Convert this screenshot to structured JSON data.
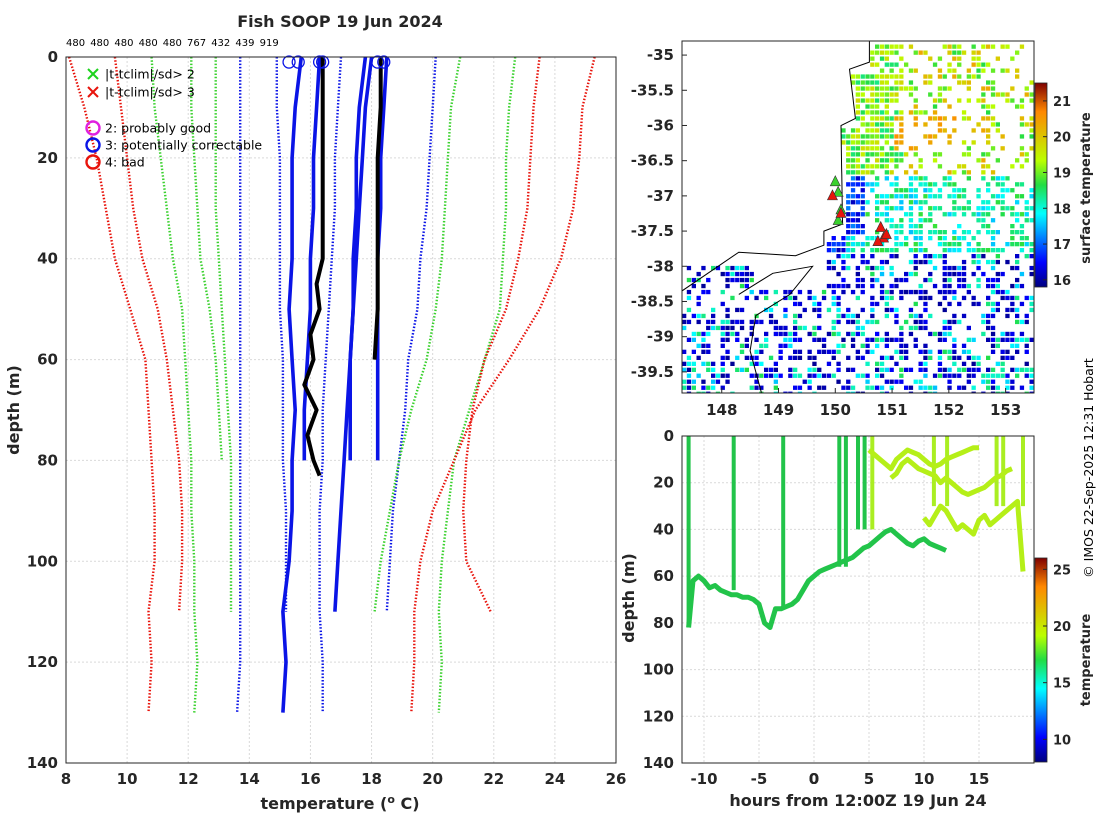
{
  "title": "Fish SOOP 19 Jun 2024",
  "credit": "© IMOS 22-Sep-2025 12:31 Hobart",
  "colors": {
    "red": "#e8140c",
    "green": "#3ad12e",
    "blue": "#0a14e6",
    "black": "#000000"
  },
  "chart_data": [
    {
      "id": "profile",
      "type": "line",
      "title": "Fish SOOP 19 Jun 2024",
      "xlabel": "temperature (o C)",
      "ylabel": "depth (m)",
      "xlim": [
        8,
        26
      ],
      "ylim": [
        140,
        0
      ],
      "xticks": [
        "8",
        "10",
        "12",
        "14",
        "16",
        "18",
        "20",
        "22",
        "24",
        "26"
      ],
      "yticks": [
        "0",
        "20",
        "40",
        "60",
        "80",
        "100",
        "120",
        "140"
      ],
      "top_counts": [
        "480",
        "480",
        "480",
        "480",
        "480",
        "767",
        "432",
        "439",
        "919"
      ],
      "legend": [
        {
          "marker": "x",
          "color": "#1ed31e",
          "label": "|t-tclim|/sd> 2"
        },
        {
          "marker": "x",
          "color": "#e8140c",
          "label": "|t-tclim|/sd> 3"
        },
        {
          "marker": "o",
          "color": "#e020e0",
          "label": "2: probably good"
        },
        {
          "marker": "o",
          "color": "#0a14e6",
          "label": "3: potentially correctable"
        },
        {
          "marker": "o",
          "color": "#e8140c",
          "label": "4: bad"
        }
      ],
      "climatology": [
        {
          "name": "red-lower-outer",
          "color": "red",
          "depth": [
            0,
            10,
            20,
            30,
            40,
            50,
            60,
            70,
            80,
            90,
            100,
            110,
            120,
            130
          ],
          "temp": [
            8.1,
            8.6,
            9.0,
            9.3,
            9.6,
            10.1,
            10.6,
            10.7,
            10.8,
            10.9,
            10.9,
            10.7,
            10.8,
            10.7
          ]
        },
        {
          "name": "red-lower-inner",
          "color": "red",
          "depth": [
            0,
            10,
            20,
            30,
            40,
            50,
            60,
            70,
            80,
            90,
            100,
            110
          ],
          "temp": [
            9.6,
            9.8,
            10.0,
            10.2,
            10.5,
            11.0,
            11.3,
            11.5,
            11.7,
            11.8,
            11.8,
            11.7
          ]
        },
        {
          "name": "green-lower-outer",
          "color": "green",
          "depth": [
            0,
            10,
            20,
            30,
            40,
            50,
            60,
            70,
            80,
            90,
            100,
            110,
            120,
            130
          ],
          "temp": [
            10.8,
            10.9,
            11.1,
            11.3,
            11.5,
            11.8,
            11.9,
            12.0,
            12.1,
            12.1,
            12.2,
            12.2,
            12.3,
            12.2
          ]
        },
        {
          "name": "green-lower-inner",
          "color": "green",
          "depth": [
            0,
            10,
            20,
            30,
            40,
            50,
            60,
            70,
            80
          ],
          "temp": [
            12.1,
            12.1,
            12.2,
            12.3,
            12.4,
            12.7,
            12.9,
            13.0,
            13.1
          ]
        },
        {
          "name": "green-lower-2",
          "color": "green",
          "depth": [
            0,
            10,
            20,
            30,
            40,
            50,
            60,
            70,
            80,
            90,
            100,
            110
          ],
          "temp": [
            12.9,
            12.9,
            12.9,
            12.9,
            13.0,
            13.1,
            13.2,
            13.3,
            13.4,
            13.4,
            13.4,
            13.4
          ]
        },
        {
          "name": "blue-lower-outer",
          "color": "blue",
          "depth": [
            0,
            10,
            20,
            30,
            40,
            50,
            60,
            70,
            80,
            90,
            100,
            110,
            120,
            130
          ],
          "temp": [
            13.7,
            13.7,
            13.7,
            13.7,
            13.7,
            13.7,
            13.7,
            13.7,
            13.7,
            13.7,
            13.7,
            13.7,
            13.7,
            13.6
          ]
        },
        {
          "name": "blue-lower-inner",
          "color": "blue",
          "depth": [
            0,
            10,
            20,
            30,
            40,
            50,
            60,
            70,
            80,
            90,
            100,
            110
          ],
          "temp": [
            14.9,
            14.9,
            15.0,
            15.0,
            15.0,
            15.0,
            15.1,
            15.1,
            15.1,
            15.2,
            15.2,
            15.2
          ]
        },
        {
          "name": "blue-upper-inner",
          "color": "blue",
          "depth": [
            0,
            10,
            20,
            30,
            40,
            50,
            60,
            70,
            80,
            90,
            100,
            110,
            120,
            130
          ],
          "temp": [
            17.0,
            16.9,
            16.8,
            16.8,
            16.7,
            16.6,
            16.5,
            16.4,
            16.4,
            16.3,
            16.3,
            16.3,
            16.4,
            16.4
          ]
        },
        {
          "name": "blue-upper-outer",
          "color": "blue",
          "depth": [
            0,
            10,
            20,
            30,
            40,
            50,
            60,
            70,
            80,
            90,
            100,
            110
          ],
          "temp": [
            20.1,
            20.0,
            19.9,
            19.8,
            19.6,
            19.5,
            19.2,
            19.1,
            18.9,
            18.7,
            18.6,
            18.5
          ]
        },
        {
          "name": "green-upper-inner",
          "color": "green",
          "depth": [
            0,
            10,
            20,
            30,
            40,
            50,
            60,
            70,
            80,
            90,
            100,
            110
          ],
          "temp": [
            20.9,
            20.6,
            20.5,
            20.4,
            20.3,
            20.1,
            19.8,
            19.3,
            18.9,
            18.6,
            18.3,
            18.1
          ]
        },
        {
          "name": "green-upper-outer",
          "color": "green",
          "depth": [
            0,
            10,
            20,
            30,
            40,
            50,
            60,
            70,
            80,
            90,
            100,
            110,
            120,
            130
          ],
          "temp": [
            22.7,
            22.5,
            22.4,
            22.4,
            22.3,
            22.2,
            21.7,
            21.2,
            20.7,
            20.5,
            20.3,
            20.2,
            20.3,
            20.2
          ]
        },
        {
          "name": "red-upper-inner",
          "color": "red",
          "depth": [
            0,
            10,
            20,
            30,
            40,
            50,
            60,
            70,
            80,
            90,
            100,
            110
          ],
          "temp": [
            23.5,
            23.3,
            23.2,
            23.1,
            22.8,
            22.4,
            21.7,
            21.3,
            21.1,
            21.0,
            21.1,
            21.9
          ]
        },
        {
          "name": "red-upper-outer",
          "color": "red",
          "depth": [
            0,
            10,
            20,
            30,
            40,
            50,
            60,
            70,
            80,
            90,
            100,
            110,
            120,
            130
          ],
          "temp": [
            25.3,
            24.9,
            24.8,
            24.6,
            24.2,
            23.5,
            22.5,
            21.4,
            20.7,
            20.0,
            19.6,
            19.4,
            19.4,
            19.3
          ]
        }
      ],
      "profiles": [
        {
          "name": "blue-profile-a",
          "color": "blue",
          "depth": [
            0,
            10,
            20,
            30,
            40,
            50,
            60,
            70,
            80,
            90,
            100,
            110,
            120,
            130
          ],
          "temp": [
            15.7,
            15.5,
            15.4,
            15.4,
            15.4,
            15.3,
            15.4,
            15.5,
            15.4,
            15.4,
            15.3,
            15.1,
            15.2,
            15.1
          ]
        },
        {
          "name": "blue-profile-b",
          "color": "blue",
          "depth": [
            0,
            10,
            20,
            30,
            40,
            50,
            60,
            70,
            80
          ],
          "temp": [
            16.3,
            16.2,
            16.1,
            16.1,
            16.0,
            16.0,
            15.9,
            15.8,
            15.8
          ]
        },
        {
          "name": "blue-profile-c",
          "color": "blue",
          "depth": [
            0,
            10,
            20,
            30,
            40,
            50,
            60,
            70,
            80
          ],
          "temp": [
            17.8,
            17.6,
            17.5,
            17.5,
            17.4,
            17.4,
            17.3,
            17.3,
            17.3
          ]
        },
        {
          "name": "blue-profile-d",
          "color": "blue",
          "depth": [
            0,
            10,
            20,
            30,
            40,
            50,
            60,
            70,
            80,
            90,
            100,
            110
          ],
          "temp": [
            18.0,
            17.8,
            17.7,
            17.6,
            17.5,
            17.4,
            17.3,
            17.2,
            17.1,
            17.0,
            16.9,
            16.8
          ]
        },
        {
          "name": "blue-profile-e",
          "color": "blue",
          "depth": [
            0,
            10,
            20,
            30,
            40,
            50,
            60,
            70,
            80
          ],
          "temp": [
            18.5,
            18.4,
            18.3,
            18.3,
            18.2,
            18.2,
            18.2,
            18.2,
            18.2
          ]
        },
        {
          "name": "black-profile-a",
          "color": "black",
          "depth": [
            0,
            10,
            20,
            30,
            40,
            45,
            50,
            55,
            60,
            65,
            70,
            75,
            80,
            83
          ],
          "temp": [
            16.4,
            16.4,
            16.4,
            16.4,
            16.4,
            16.2,
            16.3,
            16.0,
            16.1,
            15.8,
            16.2,
            15.9,
            16.1,
            16.3
          ]
        },
        {
          "name": "black-profile-b",
          "color": "black",
          "depth": [
            0,
            10,
            20,
            30,
            40,
            50,
            60
          ],
          "temp": [
            18.3,
            18.3,
            18.2,
            18.2,
            18.2,
            18.2,
            18.1
          ]
        }
      ],
      "flags": [
        {
          "temp": 15.3,
          "depth": 1
        },
        {
          "temp": 15.6,
          "depth": 1
        },
        {
          "temp": 16.3,
          "depth": 1
        },
        {
          "temp": 16.4,
          "depth": 1
        },
        {
          "temp": 18.2,
          "depth": 1
        },
        {
          "temp": 18.4,
          "depth": 1
        }
      ]
    },
    {
      "id": "map",
      "type": "heatmap",
      "xlim": [
        147.3,
        153.5
      ],
      "ylim": [
        -39.8,
        -34.8
      ],
      "xticks": [
        "148",
        "149",
        "150",
        "151",
        "152",
        "153"
      ],
      "yticks": [
        "-35",
        "-35.5",
        "-36",
        "-36.5",
        "-37",
        "-37.5",
        "-38",
        "-38.5",
        "-39",
        "-39.5"
      ],
      "colorbar_label": "surface temperature",
      "colorbar_ticks": [
        "16",
        "17",
        "18",
        "19",
        "20",
        "21"
      ],
      "colorbar_range": [
        15.8,
        21.5
      ],
      "stations": [
        {
          "lon": 150.0,
          "lat": -36.8,
          "flag": "green"
        },
        {
          "lon": 150.05,
          "lat": -36.95,
          "flag": "green"
        },
        {
          "lon": 150.1,
          "lat": -37.2,
          "flag": "green"
        },
        {
          "lon": 150.05,
          "lat": -37.35,
          "flag": "green"
        },
        {
          "lon": 149.95,
          "lat": -37.0,
          "flag": "red"
        },
        {
          "lon": 150.1,
          "lat": -37.25,
          "flag": "red"
        },
        {
          "lon": 150.8,
          "lat": -37.45,
          "flag": "red"
        },
        {
          "lon": 150.85,
          "lat": -37.6,
          "flag": "red"
        },
        {
          "lon": 150.75,
          "lat": -37.65,
          "flag": "red"
        },
        {
          "lon": 150.9,
          "lat": -37.55,
          "flag": "red"
        }
      ]
    },
    {
      "id": "timeseries",
      "type": "scatter",
      "xlabel": "hours from 12:00Z 19 Jun 24",
      "ylabel": "depth (m)",
      "xlim": [
        -12,
        20
      ],
      "ylim": [
        140,
        0
      ],
      "xticks": [
        "-10",
        "-5",
        "0",
        "5",
        "10",
        "15"
      ],
      "yticks": [
        "0",
        "20",
        "40",
        "60",
        "80",
        "100",
        "120",
        "140"
      ],
      "colorbar_label": "temperature",
      "colorbar_ticks": [
        "10",
        "15",
        "20",
        "25"
      ],
      "colorbar_range": [
        8,
        26
      ],
      "bottom_trace": {
        "hours": [
          -11.4,
          -11.0,
          -10.5,
          -10.0,
          -9.5,
          -9.0,
          -8.5,
          -8.0,
          -7.5,
          -7.0,
          -6.5,
          -6.0,
          -5.5,
          -5.0,
          -4.5,
          -4.0,
          -3.5,
          -3.0,
          -2.5,
          -2.0,
          -1.5,
          -1.0,
          -0.5,
          0.0,
          0.5,
          1.0,
          1.5,
          2.0,
          2.5,
          3.0,
          3.5,
          4.0,
          4.5,
          5.0,
          5.5,
          6.0,
          6.5,
          7.0,
          7.5,
          8.0,
          8.5,
          9.0,
          9.5,
          10.0,
          10.5,
          11.0,
          11.5,
          12.0
        ],
        "depth": [
          82,
          62,
          60,
          62,
          65,
          64,
          66,
          67,
          68,
          68,
          69,
          69,
          70,
          72,
          80,
          82,
          74,
          74,
          73,
          72,
          70,
          66,
          62,
          60,
          58,
          57,
          56,
          55,
          54,
          53,
          52,
          50,
          48,
          47,
          45,
          43,
          41,
          40,
          42,
          44,
          46,
          47,
          45,
          44,
          46,
          47,
          48,
          49
        ]
      },
      "top_traces": [
        {
          "hours": [
            5.0,
            5.5,
            6.0,
            6.5,
            7.0,
            7.5,
            8.0,
            8.5,
            9.0,
            9.5,
            10.0,
            10.5,
            11.0,
            11.5,
            12.0,
            12.5,
            13.0,
            13.5,
            14.0,
            14.5,
            15.0
          ],
          "depth": [
            6,
            8,
            10,
            12,
            14,
            10,
            8,
            6,
            7,
            8,
            10,
            12,
            13,
            12,
            10,
            9,
            8,
            7,
            6,
            5,
            5
          ]
        },
        {
          "hours": [
            7.0,
            7.5,
            8.0,
            8.5,
            9.0,
            9.5,
            10.0,
            10.5,
            11.0,
            11.5,
            12.0,
            12.5,
            13.0,
            13.5,
            14.0,
            14.5,
            15.0,
            15.5,
            16.0,
            16.5,
            17.0,
            17.5,
            18.0
          ],
          "depth": [
            18,
            16,
            12,
            10,
            12,
            14,
            15,
            16,
            17,
            20,
            18,
            20,
            22,
            24,
            25,
            24,
            23,
            22,
            20,
            18,
            17,
            15,
            14
          ]
        },
        {
          "hours": [
            10.0,
            10.5,
            11.0,
            11.5,
            12.0,
            12.5,
            13.0,
            13.5,
            14.0,
            14.5,
            15.0,
            15.5,
            16.0,
            16.5,
            17.0,
            17.5,
            18.0,
            18.5,
            19.0
          ],
          "depth": [
            35,
            38,
            34,
            30,
            32,
            36,
            40,
            38,
            40,
            42,
            36,
            34,
            38,
            36,
            34,
            32,
            30,
            28,
            58
          ]
        }
      ],
      "vertical_casts": [
        -11.4,
        -7.3,
        -2.8,
        2.3,
        2.9,
        4.0,
        4.6,
        5.3,
        10.9,
        12.1,
        16.6,
        17.2,
        19.0
      ]
    }
  ]
}
